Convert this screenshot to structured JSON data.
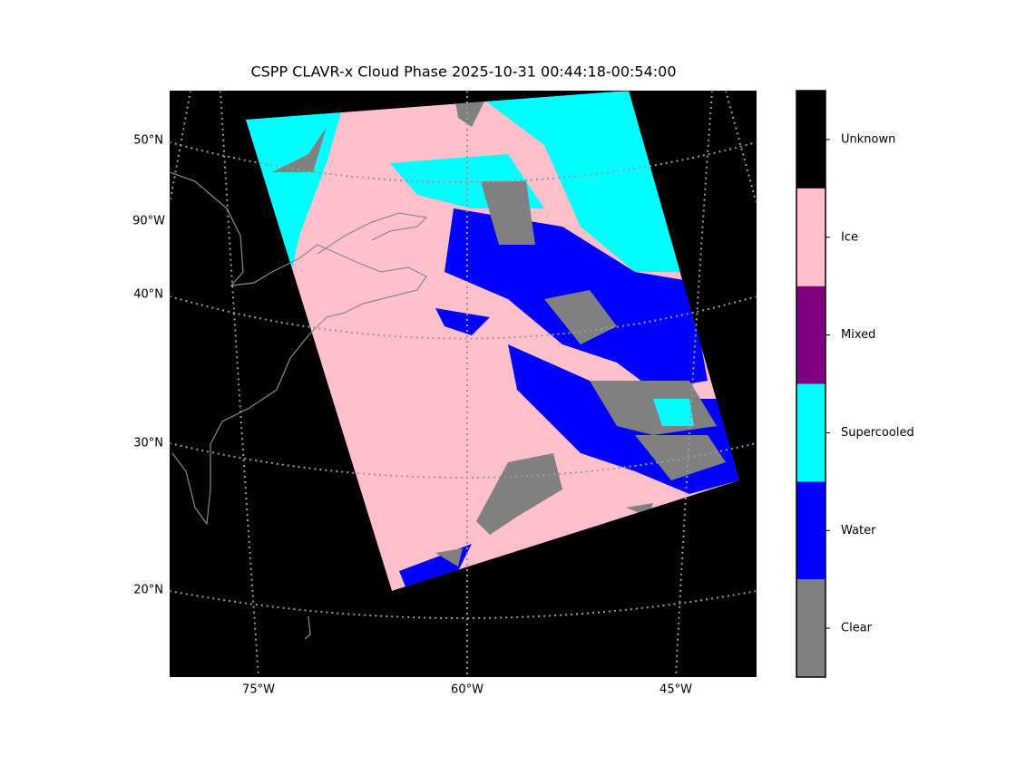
{
  "title": "CSPP CLAVR-x Cloud Phase 2025-10-31 00:44:18-00:54:00",
  "map": {
    "lat_labels": [
      "50°N",
      "90°W",
      "40°N",
      "30°N",
      "20°N"
    ],
    "lon_labels": [
      "75°W",
      "60°W",
      "45°W"
    ]
  },
  "colorbar": {
    "labels": [
      "Clear",
      "Water",
      "Supercooled",
      "Mixed",
      "Ice",
      "Unknown"
    ],
    "colors": [
      "#808080",
      "#0000ff",
      "#00ffff",
      "#800080",
      "#ffc0cb",
      "#000000"
    ]
  }
}
